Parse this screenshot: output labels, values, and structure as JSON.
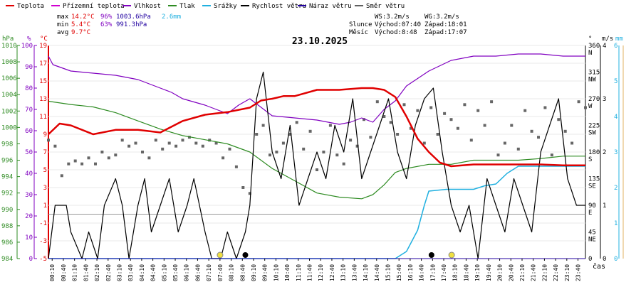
{
  "chart_data": {
    "type": "line",
    "title": "23.10.2025",
    "x_label": "čas",
    "legend": [
      {
        "name": "Teplota",
        "color": "#e00000"
      },
      {
        "name": "Přízemní teplota",
        "color": "#d000d0"
      },
      {
        "name": "Vlhkost",
        "color": "#8000c0"
      },
      {
        "name": "Tlak",
        "color": "#2e8b22"
      },
      {
        "name": "Srážky",
        "color": "#20b0e0"
      },
      {
        "name": "Rychlost větru",
        "color": "#000000"
      },
      {
        "name": "Náraz větru",
        "color": "#2000a0"
      },
      {
        "name": "Směr větru",
        "color": "#606060"
      }
    ],
    "stats": [
      {
        "label": "max",
        "temp": "14.2°C",
        "hum": "96%",
        "press": "1003.6hPa",
        "rain": "2.6mm"
      },
      {
        "label": "min",
        "temp": "5.4°C",
        "hum": "63%",
        "press": "991.3hPa",
        "rain": ""
      },
      {
        "label": "avg",
        "temp": "9.7°C",
        "hum": "",
        "press": "",
        "rain": ""
      }
    ],
    "sun_info": {
      "ws": "WS:3.2m/s",
      "wg": "WG:3.2m/s",
      "sun_label": "Slunce",
      "sunrise": "Východ:07:40",
      "sunset": "Západ:18:01",
      "moon_label": "Měsíc",
      "moonrise": "Východ:8:48",
      "moonset": "Západ:17:07"
    },
    "axes": {
      "hpa": {
        "unit": "hPa",
        "ticks": [
          "1010",
          "1008",
          "1006",
          "1004",
          "1002",
          "1000",
          "998",
          "996",
          "994",
          "992",
          "990",
          "988",
          "986",
          "984"
        ]
      },
      "pct": {
        "unit": "%",
        "ticks": [
          "100",
          "90",
          "80",
          "70",
          "60",
          "50",
          "40",
          "30",
          "20",
          "10",
          "0"
        ]
      },
      "temp": {
        "unit": "°C",
        "ticks": [
          "19",
          "17",
          "15",
          "13",
          "11",
          "9",
          "7",
          "5",
          "3",
          "1",
          "-1",
          "-3",
          "-5"
        ]
      },
      "dir": {
        "unit": "°",
        "ticks": [
          [
            "360",
            "N"
          ],
          [
            "315",
            "NW"
          ],
          [
            "270",
            "W"
          ],
          [
            "225",
            "SW"
          ],
          [
            "180",
            "S"
          ],
          [
            "135",
            "SE"
          ],
          [
            "90",
            "E"
          ],
          [
            "45",
            "NE"
          ],
          [
            "0",
            ""
          ]
        ]
      },
      "ms": {
        "unit": "m/s",
        "ticks": [
          "4",
          "3",
          "2",
          "1",
          "0"
        ]
      },
      "mm": {
        "unit": "mm",
        "ticks": [
          "6",
          "5",
          "4",
          "3",
          "2",
          "1",
          "0"
        ]
      }
    },
    "time_labels": [
      "00:10",
      "00:40",
      "01:10",
      "01:40",
      "02:10",
      "02:40",
      "03:10",
      "03:40",
      "04:10",
      "04:40",
      "05:10",
      "05:40",
      "06:10",
      "06:40",
      "07:10",
      "07:40",
      "08:10",
      "08:40",
      "09:10",
      "09:40",
      "10:10",
      "10:40",
      "11:10",
      "11:40",
      "12:10",
      "12:40",
      "13:10",
      "13:40",
      "14:10",
      "14:40",
      "15:10",
      "15:40",
      "16:10",
      "16:40",
      "17:10",
      "17:40",
      "18:10",
      "18:40",
      "19:10",
      "19:40",
      "20:10",
      "20:40",
      "21:10",
      "21:40",
      "22:10",
      "22:40",
      "23:10",
      "23:40"
    ],
    "temperature_c": {
      "hours": [
        0,
        0.5,
        1,
        2,
        3,
        4,
        5,
        6,
        7,
        8,
        9,
        9.5,
        10,
        10.5,
        11,
        12,
        13,
        14,
        14.5,
        15,
        15.5,
        16,
        16.5,
        17,
        17.5,
        18,
        19,
        20,
        21,
        22,
        23,
        24
      ],
      "values": [
        9.0,
        10.2,
        10.0,
        9.0,
        9.5,
        9.5,
        9.2,
        10.5,
        11.2,
        11.5,
        12.0,
        12.8,
        13.0,
        13.3,
        13.3,
        14.0,
        14.0,
        14.2,
        14.2,
        14.0,
        13.2,
        11.0,
        8.5,
        7.0,
        5.8,
        5.4,
        5.6,
        5.6,
        5.6,
        5.6,
        5.5,
        5.5
      ]
    },
    "humidity_pct": {
      "hours": [
        0,
        0.2,
        1,
        2,
        3,
        4,
        5,
        5.5,
        6,
        7,
        7.5,
        8,
        8.5,
        9,
        10,
        11,
        12,
        13,
        13.5,
        14,
        14.5,
        15,
        15.5,
        16,
        17,
        18,
        19,
        20,
        21,
        22,
        23,
        24
      ],
      "values": [
        95,
        91,
        88,
        87,
        86,
        84,
        80,
        78,
        75,
        72,
        70,
        68,
        72,
        75,
        67,
        66,
        65,
        63,
        64,
        66,
        64,
        70,
        74,
        81,
        88,
        93,
        95,
        95,
        96,
        96,
        95,
        95
      ]
    },
    "pressure_hpa": {
      "hours": [
        0,
        1,
        2,
        3,
        4,
        5,
        6,
        7,
        8,
        9,
        10,
        11,
        12,
        13,
        14,
        14.5,
        15,
        15.5,
        16,
        17,
        18,
        19,
        20,
        21,
        22,
        23,
        24
      ],
      "values": [
        1003.2,
        1002.8,
        1002.5,
        1001.8,
        1000.8,
        999.8,
        999.0,
        998.5,
        998.0,
        997.0,
        995.0,
        993.5,
        992.0,
        991.5,
        991.3,
        991.8,
        993.0,
        994.5,
        995.0,
        995.5,
        995.5,
        996.0,
        996.0,
        996.0,
        996.2,
        996.5,
        996.5
      ]
    },
    "rain_mm_cumulative": {
      "hours": [
        0,
        15.5,
        16,
        16.5,
        16.8,
        17,
        17.8,
        18,
        18.5,
        19,
        19.5,
        20,
        20.5,
        21,
        22,
        23,
        24
      ],
      "values": [
        0,
        0,
        0.2,
        0.8,
        1.5,
        1.9,
        1.95,
        1.95,
        1.95,
        1.95,
        2.05,
        2.1,
        2.4,
        2.6,
        2.6,
        2.6,
        2.6
      ]
    },
    "wind_speed_ms": {
      "hours": [
        0,
        0.3,
        0.8,
        1,
        1.5,
        1.8,
        2.2,
        2.5,
        3,
        3.3,
        3.6,
        4,
        4.3,
        4.6,
        5,
        5.4,
        5.8,
        6.2,
        6.5,
        7,
        7.3,
        7.7,
        8,
        8.4,
        8.8,
        9,
        9.3,
        9.6,
        10,
        10.4,
        10.8,
        11.2,
        11.6,
        12,
        12.4,
        12.8,
        13.2,
        13.6,
        14,
        14.4,
        14.8,
        15.2,
        15.6,
        16,
        16.4,
        16.8,
        17.2,
        17.6,
        18,
        18.4,
        18.8,
        19.2,
        19.6,
        20,
        20.4,
        20.8,
        21.2,
        21.6,
        22,
        22.4,
        22.8,
        23.2,
        23.6,
        24
      ],
      "values": [
        0,
        1,
        1,
        0.5,
        0,
        0.5,
        0,
        1,
        1.5,
        1,
        0,
        1,
        1.5,
        0.5,
        1,
        1.5,
        0.5,
        1,
        1.5,
        0.5,
        0,
        0,
        0.5,
        0,
        0.5,
        1,
        3,
        3.5,
        2,
        1.5,
        2.5,
        1,
        1.5,
        2,
        1.5,
        2.5,
        2,
        3,
        1.5,
        2,
        2.5,
        3,
        2,
        1.5,
        2.5,
        3,
        3.2,
        2,
        1,
        0.5,
        1,
        0,
        1.5,
        1,
        0.5,
        1.5,
        1,
        0.5,
        2,
        2.5,
        3,
        1.5,
        1,
        1
      ]
    },
    "wind_gust_ms": {
      "hours": [
        0,
        24
      ],
      "values": [
        0,
        0
      ]
    },
    "wind_direction_deg": {
      "note": "scatter points",
      "hours": [
        0,
        0.3,
        0.6,
        0.9,
        1.2,
        1.5,
        1.8,
        2.1,
        2.4,
        2.7,
        3.0,
        3.3,
        3.6,
        3.9,
        4.2,
        4.5,
        4.8,
        5.1,
        5.4,
        5.7,
        6.0,
        6.3,
        6.6,
        6.9,
        7.2,
        7.5,
        7.8,
        8.1,
        8.4,
        8.7,
        9.0,
        9.3,
        9.6,
        9.9,
        10.2,
        10.5,
        10.8,
        11.1,
        11.4,
        11.7,
        12.0,
        12.3,
        12.6,
        12.9,
        13.2,
        13.5,
        13.8,
        14.1,
        14.4,
        14.7,
        15.0,
        15.3,
        15.6,
        15.9,
        16.2,
        16.5,
        16.8,
        17.1,
        17.4,
        17.7,
        18.0,
        18.3,
        18.6,
        18.9,
        19.2,
        19.5,
        19.8,
        20.1,
        20.4,
        20.7,
        21.0,
        21.3,
        21.6,
        21.9,
        22.2,
        22.5,
        22.8,
        23.1,
        23.4,
        23.7,
        24.0
      ],
      "values": [
        200,
        190,
        140,
        160,
        165,
        160,
        170,
        160,
        180,
        170,
        175,
        200,
        190,
        195,
        180,
        170,
        200,
        185,
        195,
        190,
        200,
        205,
        195,
        190,
        200,
        195,
        170,
        185,
        155,
        120,
        110,
        210,
        225,
        175,
        180,
        195,
        210,
        230,
        185,
        215,
        150,
        180,
        225,
        175,
        160,
        200,
        190,
        235,
        205,
        265,
        240,
        230,
        210,
        260,
        220,
        250,
        195,
        255,
        210,
        245,
        235,
        220,
        260,
        200,
        250,
        225,
        265,
        175,
        195,
        225,
        185,
        250,
        215,
        205,
        255,
        175,
        235,
        215,
        195,
        265,
        255
      ]
    }
  }
}
